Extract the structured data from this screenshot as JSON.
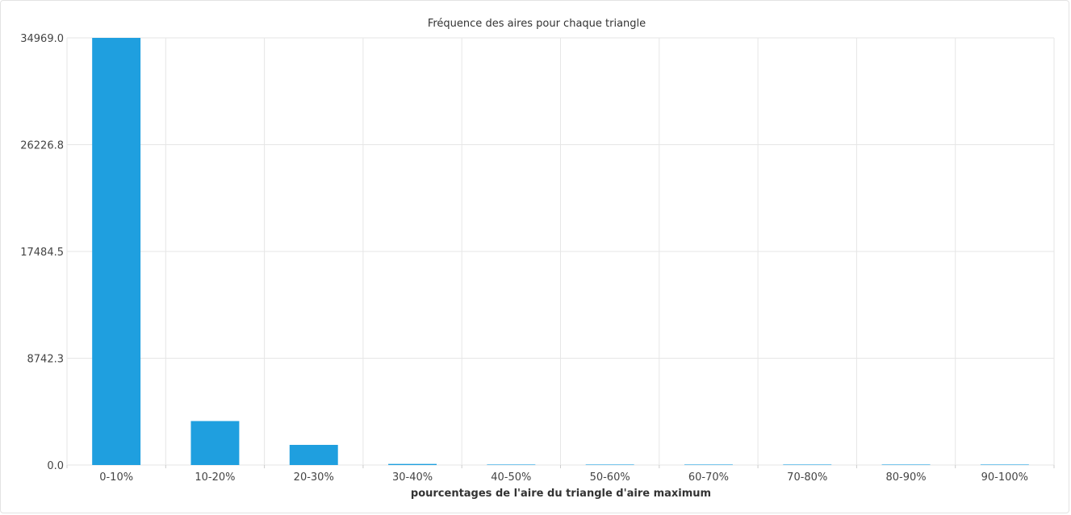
{
  "chart_data": {
    "type": "bar",
    "title": "Fréquence des aires pour chaque triangle",
    "xlabel": "pourcentages de l'aire du triangle d'aire maximum",
    "ylabel": "",
    "categories": [
      "0-10%",
      "10-20%",
      "20-30%",
      "30-40%",
      "40-50%",
      "50-60%",
      "60-70%",
      "70-80%",
      "80-90%",
      "90-100%"
    ],
    "values": [
      34969,
      3600,
      1650,
      90,
      40,
      20,
      12,
      8,
      5,
      3
    ],
    "ylim": [
      0,
      34969.0
    ],
    "yticks": [
      "0.0",
      "8742.3",
      "17484.5",
      "26226.8",
      "34969.0"
    ],
    "grid": true,
    "legend": "none",
    "colors": {
      "bar": "#1f9fdf",
      "grid": "#e6e6e6",
      "text": "#444444"
    }
  }
}
